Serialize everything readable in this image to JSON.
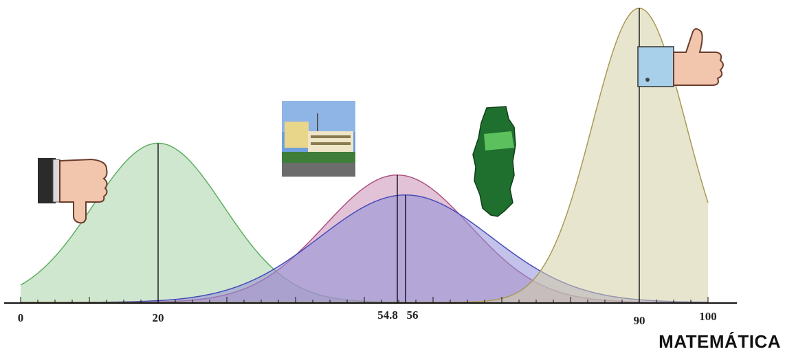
{
  "chart_data": {
    "type": "area",
    "xlim": [
      0,
      100
    ],
    "ticks": [
      {
        "x": 0,
        "label": "0"
      },
      {
        "x": 20,
        "label": "20"
      },
      {
        "x": 54.8,
        "label": "54.8"
      },
      {
        "x": 56,
        "label": "56"
      },
      {
        "x": 90,
        "label": "90"
      },
      {
        "x": 100,
        "label": "100"
      }
    ],
    "series": [
      {
        "mean": 20,
        "sd": 9.5,
        "peak": 0.541,
        "color": "#5fae5f",
        "fill": "#a8d4a8"
      },
      {
        "mean": 54.8,
        "sd": 10.5,
        "peak": 0.433,
        "color": "#b05080",
        "fill": "#c98fb5"
      },
      {
        "mean": 56,
        "sd": 12.5,
        "peak": 0.365,
        "color": "#4a4ab8",
        "fill": "#8f8fd8"
      },
      {
        "mean": 90,
        "sd": 6.8,
        "peak": 1.0,
        "color": "#a89a55",
        "fill": "#d6cfa6"
      }
    ],
    "grid": false
  },
  "footer": {
    "label": "MATEMÁTICA"
  },
  "icons": [
    "thumbs-down-icon",
    "school-building-icon",
    "portugal-map-icon",
    "thumbs-up-icon"
  ]
}
